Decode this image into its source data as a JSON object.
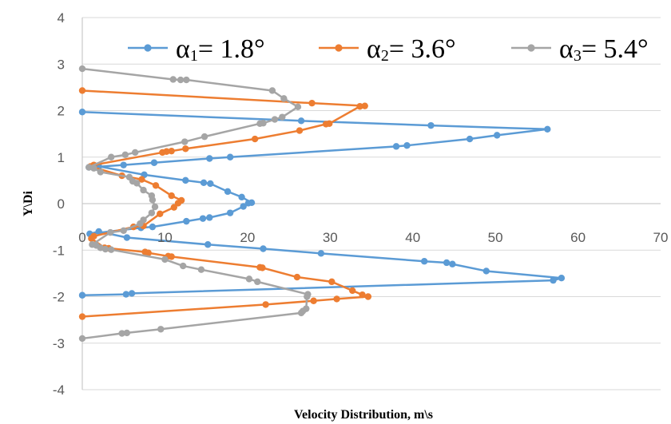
{
  "chart_data": {
    "type": "line",
    "xlabel": "Velocity Distribution, m\\s",
    "ylabel": "Y\\Di",
    "xlim": [
      0,
      70
    ],
    "ylim": [
      -4,
      4
    ],
    "x_ticks": [
      "0",
      "10",
      "20",
      "30",
      "40",
      "50",
      "60",
      "70"
    ],
    "y_ticks": [
      "4",
      "3",
      "2",
      "1",
      "0",
      "-1",
      "-2",
      "-3",
      "-4"
    ],
    "grid": "horizontal",
    "legend_position": "top",
    "series": [
      {
        "name": "α1= 1.8°",
        "legend": {
          "symbol": "α",
          "sub": "1",
          "rest": "= 1.8°"
        },
        "color": "#5B9BD5",
        "points": [
          [
            0,
            1.97
          ],
          [
            26.5,
            1.78
          ],
          [
            42.2,
            1.68
          ],
          [
            56.3,
            1.6
          ],
          [
            50.2,
            1.47
          ],
          [
            46.9,
            1.39
          ],
          [
            39.3,
            1.25
          ],
          [
            38.0,
            1.23
          ],
          [
            17.9,
            1.0
          ],
          [
            15.4,
            0.97
          ],
          [
            8.7,
            0.88
          ],
          [
            5.0,
            0.83
          ],
          [
            0.8,
            0.78
          ],
          [
            2.0,
            0.8
          ],
          [
            7.5,
            0.62
          ],
          [
            12.5,
            0.5
          ],
          [
            14.7,
            0.45
          ],
          [
            15.5,
            0.43
          ],
          [
            17.6,
            0.26
          ],
          [
            19.3,
            0.14
          ],
          [
            20.5,
            0.02
          ],
          [
            20.1,
            0.01
          ],
          [
            19.5,
            -0.06
          ],
          [
            17.9,
            -0.2
          ],
          [
            15.4,
            -0.3
          ],
          [
            14.6,
            -0.32
          ],
          [
            12.6,
            -0.38
          ],
          [
            8.5,
            -0.5
          ],
          [
            7.1,
            -0.52
          ],
          [
            0.9,
            -0.65
          ],
          [
            2.0,
            -0.6
          ],
          [
            5.4,
            -0.73
          ],
          [
            15.2,
            -0.88
          ],
          [
            21.9,
            -0.97
          ],
          [
            28.9,
            -1.07
          ],
          [
            41.4,
            -1.24
          ],
          [
            44.1,
            -1.27
          ],
          [
            44.8,
            -1.3
          ],
          [
            48.9,
            -1.45
          ],
          [
            58.0,
            -1.6
          ],
          [
            57.0,
            -1.65
          ],
          [
            6.0,
            -1.93
          ],
          [
            5.3,
            -1.95
          ],
          [
            0,
            -1.97
          ]
        ]
      },
      {
        "name": "α2= 3.6°",
        "legend": {
          "symbol": "α",
          "sub": "2",
          "rest": "= 3.6°"
        },
        "color": "#ED7D31",
        "points": [
          [
            0,
            2.43
          ],
          [
            27.8,
            2.16
          ],
          [
            34.2,
            2.1
          ],
          [
            33.6,
            2.09
          ],
          [
            29.9,
            1.72
          ],
          [
            29.5,
            1.71
          ],
          [
            26.3,
            1.57
          ],
          [
            20.9,
            1.39
          ],
          [
            12.5,
            1.18
          ],
          [
            10.8,
            1.13
          ],
          [
            10.2,
            1.12
          ],
          [
            9.7,
            1.1
          ],
          [
            1.4,
            0.83
          ],
          [
            1.0,
            0.8
          ],
          [
            4.8,
            0.6
          ],
          [
            7.2,
            0.52
          ],
          [
            8.9,
            0.39
          ],
          [
            10.8,
            0.17
          ],
          [
            12.0,
            0.07
          ],
          [
            11.6,
            0.01
          ],
          [
            11.1,
            -0.08
          ],
          [
            9.4,
            -0.22
          ],
          [
            7.4,
            -0.48
          ],
          [
            6.2,
            -0.5
          ],
          [
            1.4,
            -0.7
          ],
          [
            1.1,
            -0.75
          ],
          [
            2.7,
            -0.95
          ],
          [
            3.2,
            -0.96
          ],
          [
            7.6,
            -1.04
          ],
          [
            8.0,
            -1.06
          ],
          [
            10.4,
            -1.13
          ],
          [
            10.8,
            -1.14
          ],
          [
            21.5,
            -1.37
          ],
          [
            21.8,
            -1.38
          ],
          [
            26.0,
            -1.58
          ],
          [
            30.2,
            -1.68
          ],
          [
            32.7,
            -1.87
          ],
          [
            33.9,
            -1.96
          ],
          [
            34.6,
            -2.0
          ],
          [
            30.8,
            -2.05
          ],
          [
            28.0,
            -2.09
          ],
          [
            22.2,
            -2.17
          ],
          [
            0,
            -2.43
          ]
        ]
      },
      {
        "name": "α3= 5.4°",
        "legend": {
          "symbol": "α",
          "sub": "3",
          "rest": "= 5.4°"
        },
        "color": "#A5A5A5",
        "points": [
          [
            0,
            2.9
          ],
          [
            11.0,
            2.67
          ],
          [
            11.9,
            2.66
          ],
          [
            12.6,
            2.66
          ],
          [
            23.0,
            2.43
          ],
          [
            24.4,
            2.26
          ],
          [
            26.1,
            2.08
          ],
          [
            24.2,
            1.86
          ],
          [
            23.3,
            1.81
          ],
          [
            21.9,
            1.73
          ],
          [
            21.5,
            1.72
          ],
          [
            14.8,
            1.44
          ],
          [
            12.4,
            1.33
          ],
          [
            6.4,
            1.1
          ],
          [
            5.2,
            1.05
          ],
          [
            3.5,
            1.0
          ],
          [
            0.8,
            0.78
          ],
          [
            1.4,
            0.76
          ],
          [
            2.2,
            0.68
          ],
          [
            5.7,
            0.57
          ],
          [
            6.1,
            0.48
          ],
          [
            6.6,
            0.44
          ],
          [
            7.4,
            0.29
          ],
          [
            8.4,
            0.17
          ],
          [
            8.5,
            0.08
          ],
          [
            8.8,
            -0.07
          ],
          [
            8.4,
            -0.2
          ],
          [
            7.4,
            -0.35
          ],
          [
            7.0,
            -0.43
          ],
          [
            5.0,
            -0.58
          ],
          [
            3.4,
            -0.62
          ],
          [
            1.2,
            -0.88
          ],
          [
            1.7,
            -0.9
          ],
          [
            2.2,
            -0.95
          ],
          [
            2.8,
            -0.98
          ],
          [
            3.5,
            -0.99
          ],
          [
            10.0,
            -1.2
          ],
          [
            12.2,
            -1.34
          ],
          [
            14.4,
            -1.42
          ],
          [
            20.2,
            -1.62
          ],
          [
            21.2,
            -1.68
          ],
          [
            27.3,
            -1.95
          ],
          [
            27.2,
            -2.0
          ],
          [
            27.1,
            -2.26
          ],
          [
            26.7,
            -2.31
          ],
          [
            26.5,
            -2.35
          ],
          [
            9.5,
            -2.7
          ],
          [
            5.4,
            -2.78
          ],
          [
            4.8,
            -2.79
          ],
          [
            0,
            -2.9
          ]
        ]
      }
    ]
  }
}
